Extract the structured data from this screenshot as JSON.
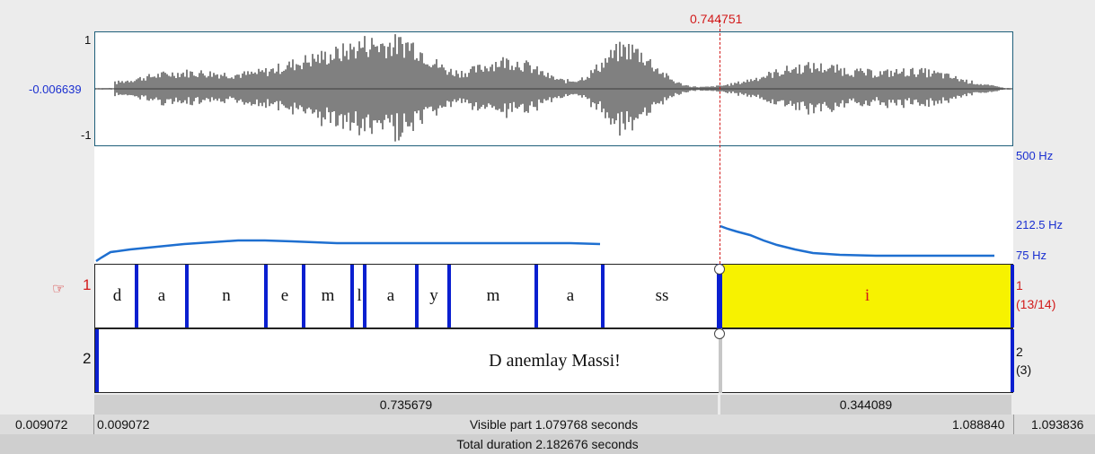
{
  "cursor": {
    "time": "0.744751"
  },
  "waveform": {
    "top_label": "1",
    "mid_label": "-0.006639",
    "bottom_label": "-1"
  },
  "pitch": {
    "max_label": "500 Hz",
    "mid_label": "212.5 Hz",
    "min_label": "75 Hz"
  },
  "tiers": [
    {
      "number": "1",
      "right_label": "1",
      "right_count": "(13/14)",
      "segments": [
        "d",
        "a",
        "n",
        "e",
        "m",
        "l",
        "a",
        "y",
        "m",
        "a",
        "ss",
        "i"
      ],
      "selected_segment": "i"
    },
    {
      "number": "2",
      "right_label": "2",
      "right_count": "(3)",
      "text": "D anemlay Massi!"
    }
  ],
  "selection": {
    "left_duration": "0.735679",
    "right_duration": "0.344089"
  },
  "footer": {
    "left_time": "0.009072",
    "visible_start": "0.009072",
    "visible_part": "Visible part 1.079768 seconds",
    "visible_end": "1.088840",
    "right_time": "1.093836",
    "total_duration": "Total duration 2.182676 seconds"
  },
  "colors": {
    "boundary": "#0a1fd0",
    "selected_fill": "#f7f200",
    "pitch_line": "#1e6fd0",
    "cursor": "#d21a1a"
  }
}
